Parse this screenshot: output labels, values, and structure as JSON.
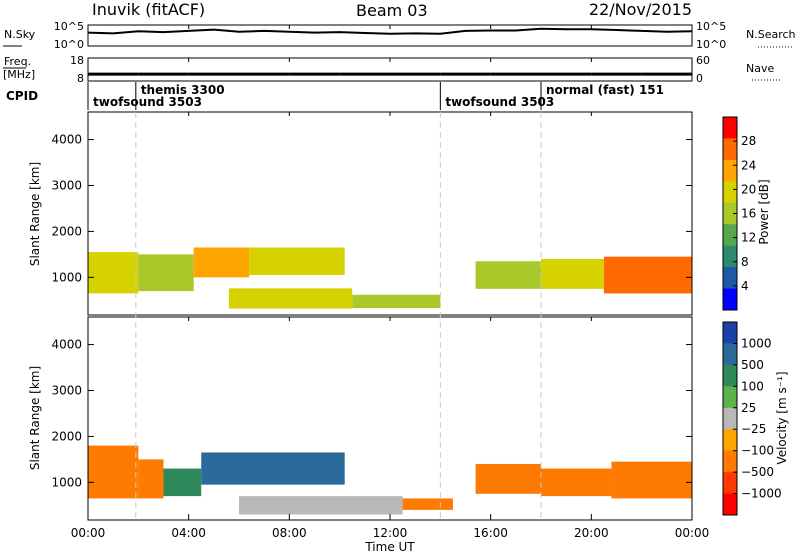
{
  "header": {
    "station": "Inuvik (fitACF)",
    "beam": "Beam 03",
    "date": "22/Nov/2015"
  },
  "colors": {
    "sky_trace": "#000000",
    "grid_dash": "#c8c8c8"
  },
  "chart_data": [
    {
      "type": "line",
      "panel": "noise",
      "left_label": "N.Sky",
      "right_label": "N.Search",
      "left_ticks": [
        "10^5",
        "10^0"
      ],
      "right_ticks": [
        "10^5",
        "10^0"
      ],
      "x": [
        0,
        1,
        2,
        3,
        4,
        5,
        6,
        7,
        8,
        9,
        10,
        11,
        12,
        13,
        14,
        15,
        16,
        17,
        18,
        19,
        20,
        21,
        22,
        23,
        24
      ],
      "values": [
        3.2,
        3.0,
        3.5,
        3.3,
        3.6,
        3.9,
        3.4,
        3.6,
        3.4,
        3.2,
        3.3,
        3.1,
        2.9,
        3.0,
        2.9,
        3.6,
        3.7,
        3.7,
        4.1,
        4.0,
        4.0,
        3.8,
        3.6,
        3.4,
        3.5
      ],
      "ylim": [
        0,
        5
      ],
      "xlim": [
        0,
        24
      ]
    },
    {
      "type": "line",
      "panel": "frequency",
      "left_label": "Freq.",
      "left_unit": "[MHz]",
      "right_label": "Nave",
      "left_ticks": [
        "18",
        "8"
      ],
      "right_ticks": [
        "60",
        "0"
      ],
      "x": [
        0,
        2,
        4,
        6,
        8,
        10,
        12,
        14,
        16,
        18,
        20,
        22,
        24
      ],
      "values": [
        11,
        11,
        11,
        11,
        11,
        11,
        11,
        11,
        11,
        11,
        11,
        11,
        11
      ],
      "ylim": [
        8,
        18
      ],
      "xlim": [
        0,
        24
      ]
    },
    {
      "type": "table",
      "panel": "cpid",
      "label": "CPID",
      "segments": [
        {
          "start": 0,
          "name": "twofsound 3503",
          "row": "lower"
        },
        {
          "start": 1.9,
          "name": "themis 3300",
          "row": "upper"
        },
        {
          "start": 14,
          "name": "twofsound 3503",
          "row": "lower"
        },
        {
          "start": 18,
          "name": "normal (fast) 151",
          "row": "upper"
        }
      ],
      "xlim": [
        0,
        24
      ]
    },
    {
      "type": "heatmap",
      "panel": "power",
      "ylabel": "Slant Range [km]",
      "yticks": [
        "1000",
        "2000",
        "3000",
        "4000"
      ],
      "ylim": [
        180,
        4600
      ],
      "xlim": [
        0,
        24
      ],
      "colorbar_label": "Power [dB]",
      "colorbar_ticks": [
        "28",
        "24",
        "20",
        "16",
        "12",
        "8",
        "4"
      ],
      "colorbar_colors": [
        "#ff0000",
        "#ff6a00",
        "#ffa500",
        "#d6d200",
        "#a9c82a",
        "#56a84e",
        "#2a8a6a",
        "#1c5aa8",
        "#0000ff"
      ],
      "bands": [
        {
          "t0": 0.0,
          "t1": 2.0,
          "r0": 650,
          "r1": 1550,
          "value": 18
        },
        {
          "t0": 2.0,
          "t1": 4.2,
          "r0": 700,
          "r1": 1500,
          "value": 14
        },
        {
          "t0": 4.2,
          "t1": 6.4,
          "r0": 1000,
          "r1": 1650,
          "value": 22
        },
        {
          "t0": 6.4,
          "t1": 10.2,
          "r0": 1050,
          "r1": 1650,
          "value": 20
        },
        {
          "t0": 5.6,
          "t1": 10.5,
          "r0": 320,
          "r1": 760,
          "value": 20
        },
        {
          "t0": 10.5,
          "t1": 14.0,
          "r0": 330,
          "r1": 620,
          "value": 14
        },
        {
          "t0": 15.4,
          "t1": 18.0,
          "r0": 750,
          "r1": 1350,
          "value": 16
        },
        {
          "t0": 18.0,
          "t1": 20.5,
          "r0": 750,
          "r1": 1400,
          "value": 20
        },
        {
          "t0": 20.5,
          "t1": 24.0,
          "r0": 650,
          "r1": 1450,
          "value": 26
        }
      ]
    },
    {
      "type": "heatmap",
      "panel": "velocity",
      "ylabel": "Slant Range [km]",
      "yticks": [
        "1000",
        "2000",
        "3000",
        "4000"
      ],
      "ylim": [
        180,
        4600
      ],
      "xlim": [
        0,
        24
      ],
      "xticks": [
        "00:00",
        "04:00",
        "08:00",
        "12:00",
        "16:00",
        "20:00",
        "00:00"
      ],
      "xlabel": "Time UT",
      "colorbar_label": "Velocity [m s⁻¹]",
      "colorbar_ticks": [
        "1000",
        "500",
        "100",
        "25",
        "−25",
        "−100",
        "−500",
        "−1000"
      ],
      "colorbar_colors": [
        "#1c3fa8",
        "#2a6a9a",
        "#2e8a5a",
        "#5ab44a",
        "#b8b8b8",
        "#ffa500",
        "#ff7a00",
        "#ff3a00",
        "#ff0000"
      ],
      "bands": [
        {
          "t0": 0.0,
          "t1": 2.0,
          "r0": 650,
          "r1": 1800,
          "value": -150
        },
        {
          "t0": 2.0,
          "t1": 3.0,
          "r0": 650,
          "r1": 1500,
          "value": -120
        },
        {
          "t0": 3.0,
          "t1": 4.5,
          "r0": 700,
          "r1": 1300,
          "value": 150
        },
        {
          "t0": 4.5,
          "t1": 10.2,
          "r0": 950,
          "r1": 1650,
          "value": 300
        },
        {
          "t0": 6.0,
          "t1": 12.5,
          "r0": 300,
          "r1": 700,
          "value": 0
        },
        {
          "t0": 12.5,
          "t1": 14.5,
          "r0": 400,
          "r1": 650,
          "value": -150
        },
        {
          "t0": 15.4,
          "t1": 18.0,
          "r0": 750,
          "r1": 1400,
          "value": -150
        },
        {
          "t0": 18.0,
          "t1": 20.8,
          "r0": 700,
          "r1": 1300,
          "value": -150
        },
        {
          "t0": 20.8,
          "t1": 24.0,
          "r0": 650,
          "r1": 1450,
          "value": -300
        }
      ]
    }
  ]
}
